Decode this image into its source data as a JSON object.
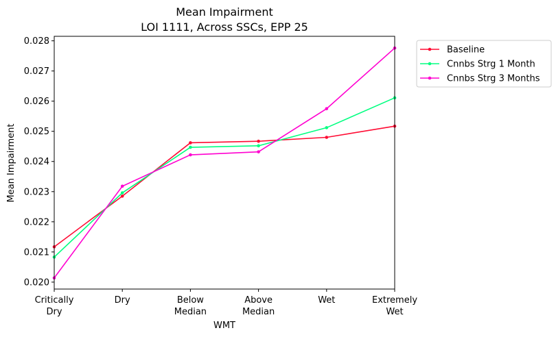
{
  "chart_data": {
    "type": "line",
    "title": "Mean Impairment",
    "subtitle": "LOI 1111, Across SSCs, EPP 25",
    "xlabel": "WMT",
    "ylabel": "Mean Impairment",
    "categories": [
      [
        "Critically",
        "Dry"
      ],
      [
        "Dry"
      ],
      [
        "Below",
        "Median"
      ],
      [
        "Above",
        "Median"
      ],
      [
        "Wet"
      ],
      [
        "Extremely",
        "Wet"
      ]
    ],
    "ylim": [
      0.01977,
      0.02815
    ],
    "yticks": [
      "0.020",
      "0.021",
      "0.022",
      "0.023",
      "0.024",
      "0.025",
      "0.026",
      "0.027",
      "0.028"
    ],
    "grid": false,
    "legend_position": "outside-top-right",
    "series": [
      {
        "name": "Baseline",
        "color": "#ff0a32",
        "values": [
          0.02117,
          0.02285,
          0.02462,
          0.02467,
          0.0248,
          0.02517
        ]
      },
      {
        "name": "Cnnbs Strg 1 Month",
        "color": "#00ff80",
        "values": [
          0.02083,
          0.02296,
          0.02447,
          0.02452,
          0.02512,
          0.02611
        ]
      },
      {
        "name": "Cnnbs Strg 3 Months",
        "color": "#ff00d0",
        "values": [
          0.02014,
          0.02318,
          0.02422,
          0.02432,
          0.02575,
          0.02776
        ]
      }
    ]
  }
}
